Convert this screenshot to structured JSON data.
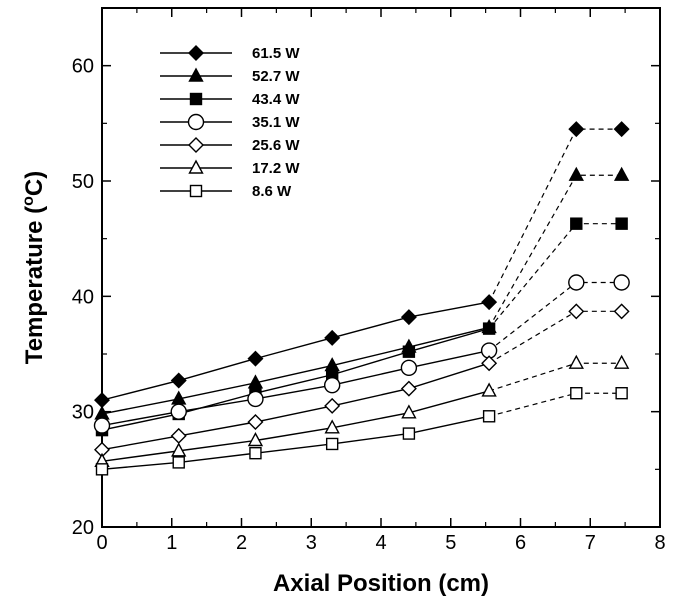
{
  "chart_data": {
    "type": "line",
    "xlabel": "Axial Position (cm)",
    "ylabel_parts": {
      "pre": "Temperature (",
      "sup": "o",
      "post": "C)"
    },
    "xlim": [
      0,
      8
    ],
    "ylim": [
      20,
      65
    ],
    "xticks": [
      0,
      1,
      2,
      3,
      4,
      5,
      6,
      7,
      8
    ],
    "yticks": [
      20,
      30,
      40,
      50,
      60
    ],
    "x": [
      0,
      1.1,
      2.2,
      3.3,
      4.4,
      5.55
    ],
    "x_ext": [
      6.8,
      7.45
    ],
    "grid": false,
    "legend_position": "top-left",
    "series": [
      {
        "name": "61.5 W",
        "marker": "diamond",
        "filled": true,
        "values": [
          31.0,
          32.7,
          34.6,
          36.4,
          38.2,
          39.5
        ],
        "ext_values": [
          54.5,
          54.5
        ]
      },
      {
        "name": "52.7 W",
        "marker": "triangle",
        "filled": true,
        "values": [
          29.8,
          31.1,
          32.5,
          34.0,
          35.6,
          37.3
        ],
        "ext_values": [
          50.5,
          50.5
        ]
      },
      {
        "name": "43.4 W",
        "marker": "square",
        "filled": true,
        "values": [
          28.4,
          29.8,
          31.6,
          33.2,
          35.2,
          37.2
        ],
        "ext_values": [
          46.3,
          46.3
        ]
      },
      {
        "name": "35.1 W",
        "marker": "circle",
        "filled": false,
        "values": [
          28.8,
          30.0,
          31.1,
          32.3,
          33.8,
          35.3
        ],
        "ext_values": [
          41.2,
          41.2
        ]
      },
      {
        "name": "25.6 W",
        "marker": "diamond",
        "filled": false,
        "values": [
          26.7,
          27.9,
          29.1,
          30.5,
          32.0,
          34.2
        ],
        "ext_values": [
          38.7,
          38.7
        ]
      },
      {
        "name": "17.2 W",
        "marker": "triangle",
        "filled": false,
        "values": [
          25.7,
          26.6,
          27.5,
          28.6,
          29.9,
          31.8
        ],
        "ext_values": [
          34.2,
          34.2
        ]
      },
      {
        "name": "8.6 W",
        "marker": "square",
        "filled": false,
        "values": [
          25.0,
          25.6,
          26.4,
          27.2,
          28.1,
          29.6
        ],
        "ext_values": [
          31.6,
          31.6
        ]
      }
    ]
  }
}
